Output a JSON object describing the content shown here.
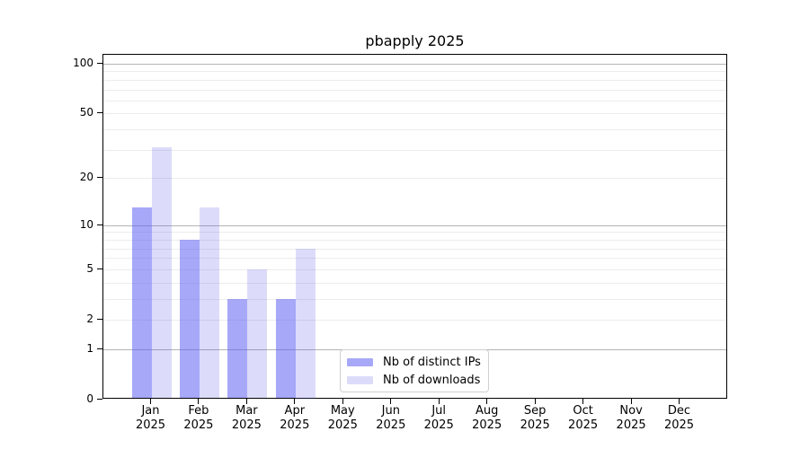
{
  "chart_data": {
    "type": "bar",
    "title": "pbapply 2025",
    "categories": [
      "Jan",
      "Feb",
      "Mar",
      "Apr",
      "May",
      "Jun",
      "Jul",
      "Aug",
      "Sep",
      "Oct",
      "Nov",
      "Dec"
    ],
    "year_label": "2025",
    "series": [
      {
        "name": "Nb of distinct IPs",
        "color": "#6161f2",
        "alpha": 0.55,
        "blended_color": "#a8a8f8",
        "values": [
          13,
          8,
          3,
          3,
          0,
          0,
          0,
          0,
          0,
          0,
          0,
          0
        ]
      },
      {
        "name": "Nb of downloads",
        "color": "#5050e6",
        "alpha": 0.2,
        "blended_color": "#dcdcfa",
        "values": [
          31,
          13,
          5,
          7,
          0,
          0,
          0,
          0,
          0,
          0,
          0,
          0
        ]
      }
    ],
    "yscale": "log1p",
    "ymax_tick": 100,
    "yticks": [
      0,
      1,
      2,
      5,
      10,
      20,
      50,
      100
    ],
    "gridlines_major": [
      1,
      10,
      100
    ],
    "gridlines_minor": [
      2,
      3,
      4,
      5,
      6,
      7,
      8,
      9,
      20,
      30,
      40,
      50,
      60,
      70,
      80,
      90
    ],
    "grid": "on",
    "legend_position": "lower center",
    "xlabel": "",
    "ylabel": "",
    "colors": {
      "major_grid": "#b4b4b4",
      "minor_grid": "#ececec",
      "spine": "#000000",
      "background": "#ffffff"
    }
  }
}
